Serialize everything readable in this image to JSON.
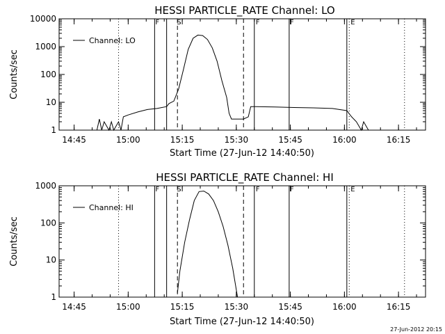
{
  "chart_data": [
    {
      "type": "line",
      "title": "HESSI PARTICLE_RATE Channel: LO",
      "xlabel": "Start Time (27-Jun-12 14:40:50)",
      "ylabel": "Counts/sec",
      "y_scale": "log",
      "ylim": [
        1,
        10000
      ],
      "xlim": [
        "14:40:50",
        "16:22:30"
      ],
      "x_ticks": [
        "14:45",
        "15:00",
        "15:15",
        "15:30",
        "15:45",
        "16:00",
        "16:15"
      ],
      "y_ticks": [
        "1",
        "10",
        "100",
        "1000",
        "10000"
      ],
      "legend": {
        "position": "upper-left",
        "entries": [
          "Channel: LO"
        ]
      },
      "flags": [
        "F",
        "S",
        "F",
        "F",
        "E"
      ],
      "series": [
        {
          "name": "Channel: LO",
          "x": [
            "14:51:20",
            "14:52:00",
            "14:52:40",
            "14:53:20",
            "14:54:40",
            "14:55:20",
            "14:56:00",
            "14:57:20",
            "14:58:00",
            "14:58:40",
            "15:00:00",
            "15:02:40",
            "15:05:20",
            "15:08:00",
            "15:10:40",
            "15:11:20",
            "15:12:40",
            "15:14:00",
            "15:15:20",
            "15:16:40",
            "15:18:00",
            "15:19:20",
            "15:20:40",
            "15:22:00",
            "15:23:20",
            "15:24:40",
            "15:26:00",
            "15:27:20",
            "15:28:00",
            "15:28:40",
            "15:29:20",
            "15:30:40",
            "15:32:00",
            "15:33:20",
            "15:34:00",
            "15:34:40",
            "15:35:20",
            "15:40:40",
            "15:46:00",
            "15:51:20",
            "15:56:40",
            "16:00:40",
            "16:02:00",
            "16:03:20",
            "16:04:40",
            "16:05:20",
            "16:06:40"
          ],
          "y": [
            1,
            2.5,
            1,
            2,
            1,
            2,
            1,
            2,
            1,
            3,
            3.5,
            4.5,
            5.5,
            6,
            7,
            9,
            11,
            30,
            150,
            800,
            2000,
            2600,
            2500,
            1800,
            900,
            300,
            60,
            15,
            4,
            2.5,
            2.5,
            2.5,
            2.5,
            3,
            7,
            7,
            7,
            6.8,
            6.5,
            6.3,
            6,
            5,
            3,
            2,
            1,
            2,
            1
          ]
        }
      ],
      "markers": {
        "solid": [
          "15:07:20",
          "15:10:40",
          "15:35:00",
          "15:44:40",
          "16:00:40"
        ],
        "dashed": [
          "15:13:40",
          "15:32:00"
        ],
        "dotted": [
          "14:57:20",
          "16:01:20",
          "16:16:40"
        ]
      }
    },
    {
      "type": "line",
      "title": "HESSI PARTICLE_RATE Channel: HI",
      "xlabel": "Start Time (27-Jun-12 14:40:50)",
      "ylabel": "Counts/sec",
      "y_scale": "log",
      "ylim": [
        1,
        1000
      ],
      "xlim": [
        "14:40:50",
        "16:22:30"
      ],
      "x_ticks": [
        "14:45",
        "15:00",
        "15:15",
        "15:30",
        "15:45",
        "16:00",
        "16:15"
      ],
      "y_ticks": [
        "1",
        "10",
        "100",
        "1000"
      ],
      "legend": {
        "position": "upper-left",
        "entries": [
          "Channel: HI"
        ]
      },
      "flags": [
        "F",
        "S",
        "F",
        "F",
        "E"
      ],
      "series": [
        {
          "name": "Channel: HI",
          "x": [
            "15:13:40",
            "15:14:20",
            "15:15:40",
            "15:17:00",
            "15:18:20",
            "15:19:40",
            "15:21:00",
            "15:22:20",
            "15:23:40",
            "15:25:00",
            "15:26:20",
            "15:27:40",
            "15:29:00",
            "15:30:20"
          ],
          "y": [
            1.3,
            5,
            30,
            120,
            400,
            700,
            720,
            600,
            400,
            200,
            80,
            25,
            6,
            1
          ]
        }
      ],
      "markers": {
        "solid": [
          "15:07:20",
          "15:10:40",
          "15:35:00",
          "15:44:40",
          "16:00:40"
        ],
        "dashed": [
          "15:13:40",
          "15:32:00"
        ],
        "dotted": [
          "14:57:20",
          "16:01:20",
          "16:16:40"
        ]
      }
    }
  ],
  "timestamp": "27-Jun-2012 20:15"
}
